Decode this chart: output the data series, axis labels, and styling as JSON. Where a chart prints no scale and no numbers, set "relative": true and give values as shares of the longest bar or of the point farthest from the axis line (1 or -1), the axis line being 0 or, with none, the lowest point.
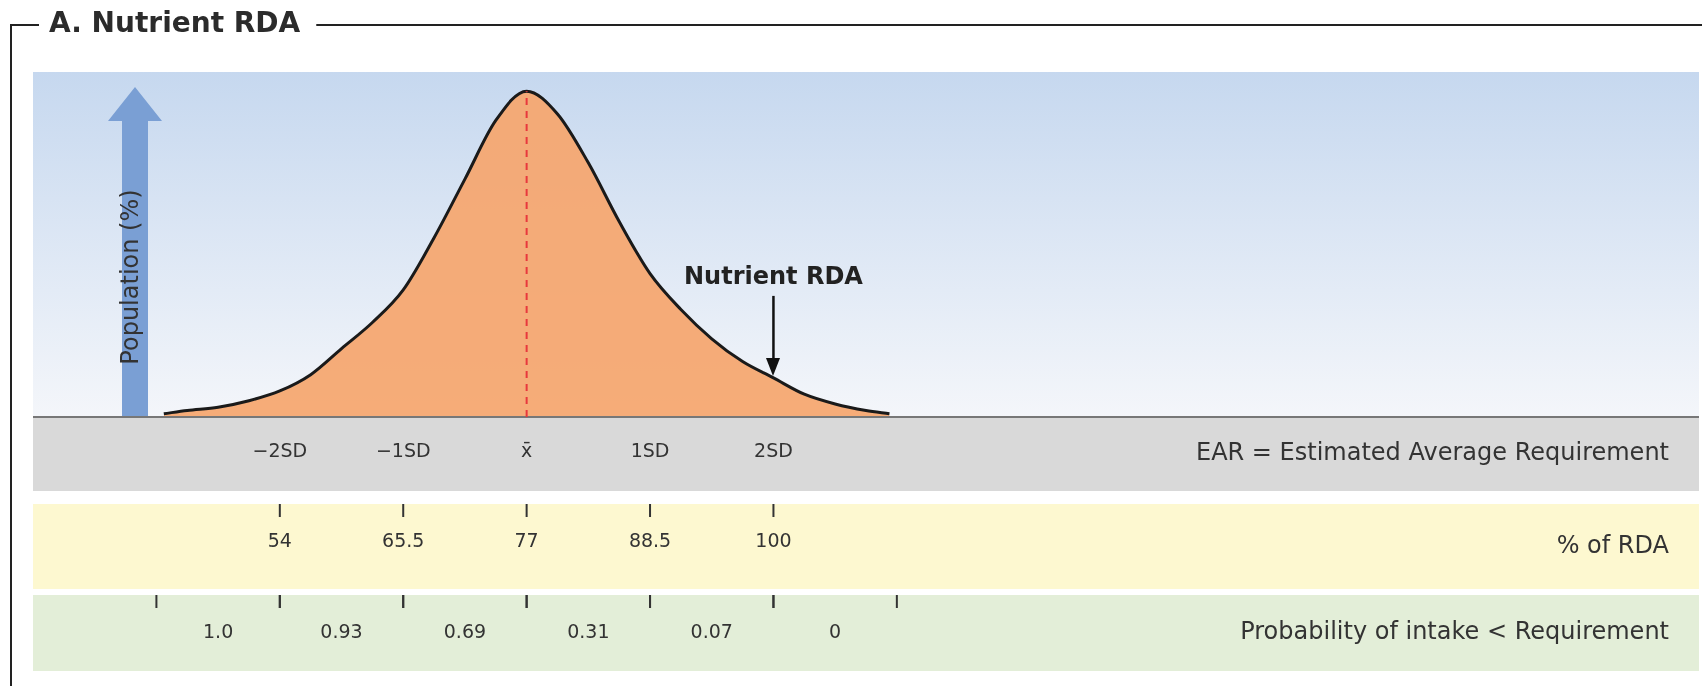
{
  "chart_data": {
    "type": "area",
    "title": "A. Nutrient RDA",
    "ylabel": "Population (%)",
    "xlabel": "EAR = Estimated Average Requirement",
    "x2label": "% of RDA",
    "relative": true,
    "x": [
      -2.94,
      -2.75,
      -2.5,
      -2.25,
      -2,
      -1.75,
      -1.5,
      -1.25,
      -1,
      -0.75,
      -0.5,
      -0.25,
      0,
      0.25,
      0.5,
      0.75,
      1,
      1.25,
      1.5,
      1.75,
      2,
      2.25,
      2.5,
      2.75,
      2.94
    ],
    "series": [
      {
        "color": "#f5a66e",
        "values": [
          0.01,
          0.02,
          0.03,
          0.05,
          0.08,
          0.13,
          0.21,
          0.29,
          0.39,
          0.55,
          0.73,
          0.91,
          1,
          0.93,
          0.78,
          0.6,
          0.44,
          0.33,
          0.24,
          0.17,
          0.12,
          0.07,
          0.04,
          0.02,
          0.01
        ]
      }
    ],
    "xlim": [
      -4,
      9.5
    ],
    "xticks": [
      {
        "value": -2,
        "label": "−2SD"
      },
      {
        "value": -1,
        "label": "−1SD"
      },
      {
        "value": 0,
        "label": "x̄"
      },
      {
        "value": 1,
        "label": "1SD"
      },
      {
        "value": 2,
        "label": "2SD"
      }
    ],
    "x2lim": [
      31,
      186.25
    ],
    "x2ticks": [
      54,
      65.5,
      77,
      88.5,
      100
    ],
    "ref_lines": [
      {
        "axis": "x",
        "value": 0,
        "color": "#e8383d",
        "line_style": "dashed"
      },
      {
        "axis": "x",
        "value": 2,
        "label": "Nutrient RDA",
        "color": "#111111",
        "line_style": "solid"
      }
    ],
    "annotations": [
      "Probability of intake < Requirement",
      "1.0",
      "0.93",
      "0.69",
      "0.31",
      "0.07",
      "0"
    ],
    "legend": false,
    "grid": false
  }
}
